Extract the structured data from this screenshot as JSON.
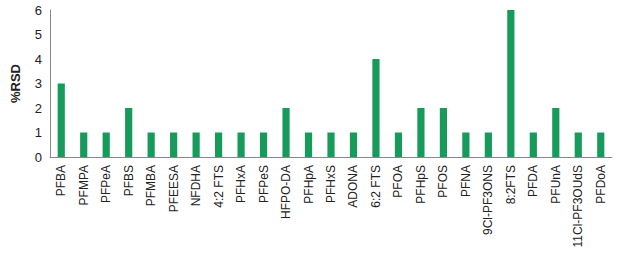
{
  "chart_data": {
    "type": "bar",
    "y_label": "%RSD",
    "categories": [
      "PFBA",
      "PFMPA",
      "PFPeA",
      "PFBS",
      "PFMBA",
      "PFEESA",
      "NFDHA",
      "4:2 FTS",
      "PFHxA",
      "PFPeS",
      "HFPO-DA",
      "PFHpA",
      "PFHxS",
      "ADONA",
      "6:2 FTS",
      "PFOA",
      "PFHpS",
      "PFOS",
      "PFNA",
      "9Cl-PF3ONS",
      "8:2FTS",
      "PFDA",
      "PFUnA",
      "11Cl-PF3OUdS",
      "PFDoA"
    ],
    "values": [
      3,
      1,
      1,
      2,
      1,
      1,
      1,
      1,
      1,
      1,
      2,
      1,
      1,
      1,
      4,
      1,
      2,
      2,
      1,
      1,
      6,
      1,
      2,
      1,
      1
    ],
    "color": "#169b5a",
    "ylim": [
      0,
      6
    ],
    "yticks": [
      0,
      1,
      2,
      3,
      4,
      5,
      6
    ],
    "grid": false
  }
}
